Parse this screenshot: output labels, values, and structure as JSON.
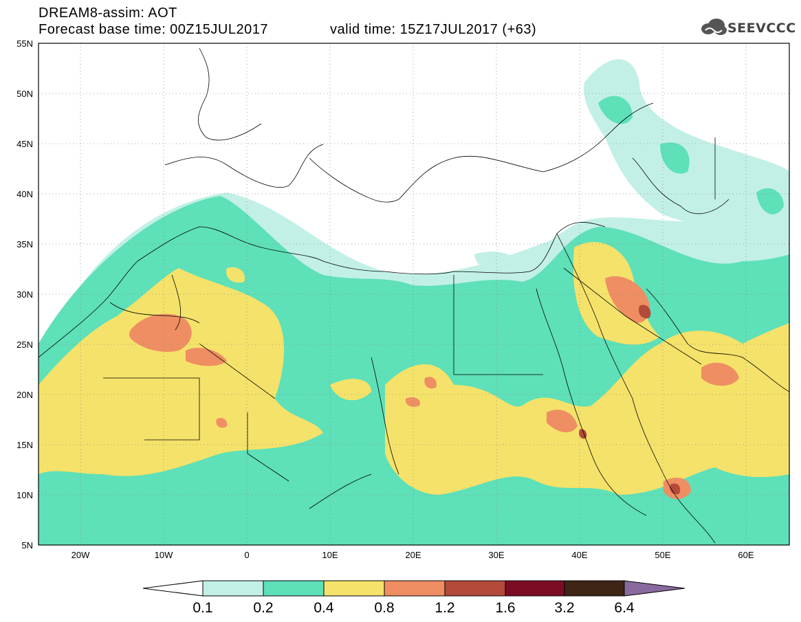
{
  "header": {
    "title_line1": "DREAM8-assim: AOT",
    "base_time": "Forecast base time: 00Z15JUL2017",
    "valid_time": "valid time: 15Z17JUL2017 (+63)",
    "logo_text": "SEEVCCC"
  },
  "map": {
    "lat_ticks": [
      "55N",
      "50N",
      "45N",
      "40N",
      "35N",
      "30N",
      "25N",
      "20N",
      "15N",
      "10N",
      "5N"
    ],
    "lon_ticks": [
      "20W",
      "10W",
      "0",
      "10E",
      "20E",
      "30E",
      "40E",
      "50E",
      "60E"
    ],
    "lon_range": [
      -25,
      65
    ],
    "lat_range": [
      5,
      55
    ],
    "gridlines": "dotted"
  },
  "colorbar": {
    "labels": [
      "0.1",
      "0.2",
      "0.4",
      "0.8",
      "1.2",
      "1.6",
      "3.2",
      "6.4"
    ],
    "colors": [
      "#ffffff",
      "#c2f0e6",
      "#5ee0b8",
      "#f5e26a",
      "#ee8e62",
      "#b34a3a",
      "#7a0d24",
      "#3e2516",
      "#8a6a9e"
    ]
  }
}
